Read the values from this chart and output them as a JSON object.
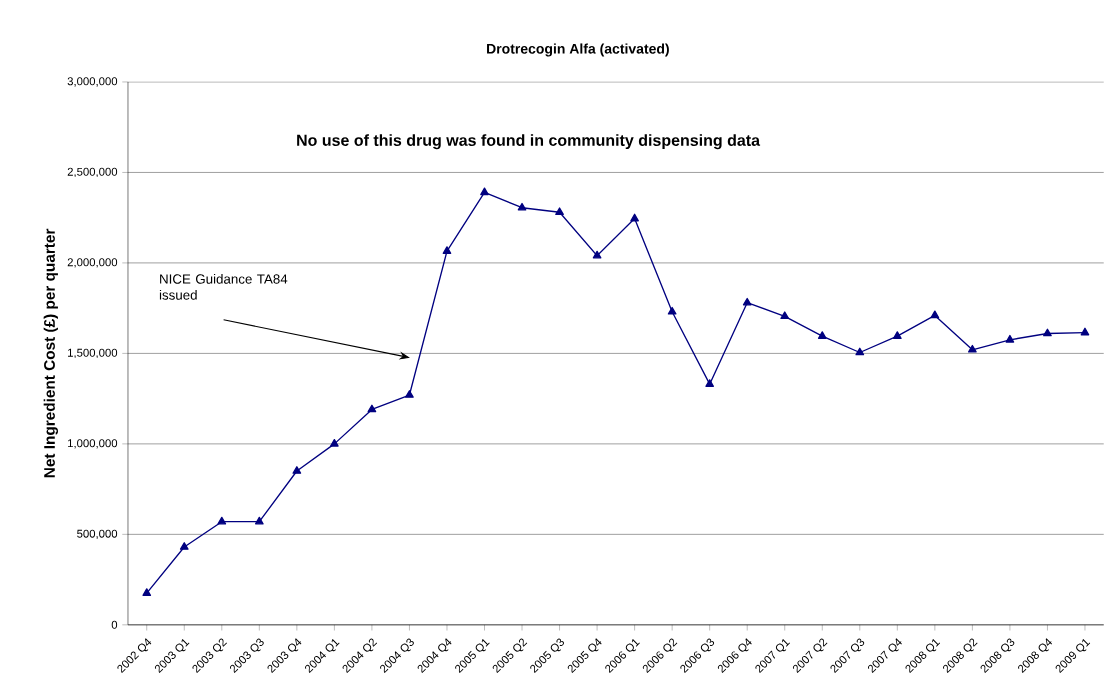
{
  "chart_data": {
    "type": "line",
    "title": "Drotrecogin Alfa (activated)",
    "ylabel": "Net Ingredient Cost (£) per quarter",
    "categories": [
      "2002 Q4",
      "2003 Q1",
      "2003 Q2",
      "2003 Q3",
      "2003 Q4",
      "2004 Q1",
      "2004 Q2",
      "2004 Q3",
      "2004 Q4",
      "2005 Q1",
      "2005 Q2",
      "2005 Q3",
      "2005 Q4",
      "2006 Q1",
      "2006 Q2",
      "2006 Q3",
      "2006 Q4",
      "2007 Q1",
      "2007 Q2",
      "2007 Q3",
      "2007 Q4",
      "2008 Q1",
      "2008 Q2",
      "2008 Q3",
      "2008 Q4",
      "2009 Q1"
    ],
    "series": [
      {
        "color": "#000080",
        "values": [
          175000,
          430000,
          570000,
          570000,
          850000,
          1000000,
          1190000,
          1270000,
          2065000,
          2390000,
          2305000,
          2280000,
          2040000,
          2245000,
          1730000,
          1330000,
          1780000,
          1705000,
          1595000,
          1505000,
          1595000,
          1710000,
          1520000,
          1575000,
          1610000,
          1615000
        ]
      }
    ],
    "ylim": [
      0,
      3000000
    ],
    "yticks": [
      0,
      {
        "value": 500000,
        "label": "500,000"
      },
      {
        "value": 1000000,
        "label": "1,000,000"
      },
      {
        "value": 1500000,
        "label": "1,500,000"
      },
      {
        "value": 2000000,
        "label": "2,000,000"
      },
      {
        "value": 2500000,
        "label": "2,500,000"
      },
      {
        "value": 3000000,
        "label": "3,000,000"
      }
    ],
    "annotations": [
      "NICE Guidance TA84 issued",
      "No use of this drug was found in community dispensing data"
    ],
    "grid": "y",
    "marker": "triangle",
    "line_style": "solid"
  }
}
